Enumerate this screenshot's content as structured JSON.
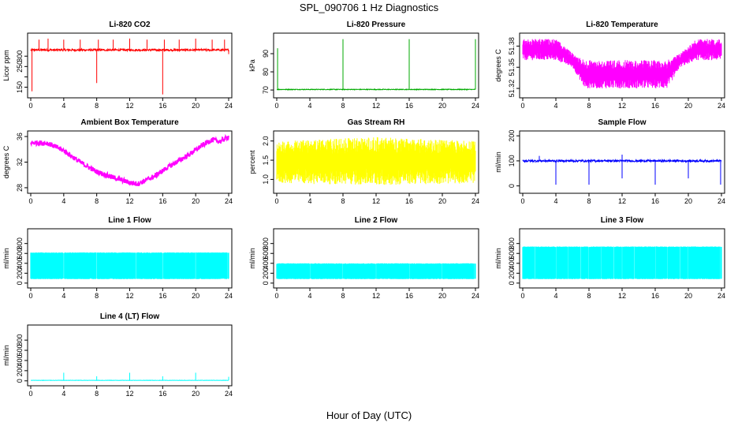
{
  "figure": {
    "title": "SPL_090706  1 Hz Diagnostics",
    "xlabel": "Hour of Day (UTC)"
  },
  "chart_data": [
    {
      "type": "line",
      "title": "Li-820 CO2",
      "ylabel": "Licor ppm",
      "color": "#ff0000",
      "xlim": [
        0,
        24
      ],
      "ylim": [
        110,
        400
      ],
      "xticks": [
        0,
        4,
        8,
        12,
        16,
        20,
        24
      ],
      "yticks": [
        150,
        200,
        250,
        300
      ],
      "yticklabels": [
        "150",
        "",
        "250",
        "300"
      ],
      "baseline": 330,
      "noise": 5,
      "mode": "line",
      "spikes": [
        {
          "x": 0.15,
          "y": 130
        },
        {
          "x": 1.0,
          "y": 380
        },
        {
          "x": 2.1,
          "y": 385
        },
        {
          "x": 4.0,
          "y": 380
        },
        {
          "x": 6.0,
          "y": 380
        },
        {
          "x": 8.0,
          "y": 170
        },
        {
          "x": 8.2,
          "y": 380
        },
        {
          "x": 10.0,
          "y": 380
        },
        {
          "x": 12.0,
          "y": 385
        },
        {
          "x": 14.1,
          "y": 380
        },
        {
          "x": 16.0,
          "y": 115
        },
        {
          "x": 16.2,
          "y": 380
        },
        {
          "x": 18.0,
          "y": 380
        },
        {
          "x": 20.0,
          "y": 385
        },
        {
          "x": 22.0,
          "y": 380
        },
        {
          "x": 23.5,
          "y": 380
        },
        {
          "x": 24.0,
          "y": 310
        }
      ]
    },
    {
      "type": "line",
      "title": "Li-820 Pressure",
      "ylabel": "kPa",
      "color": "#00aa00",
      "xlim": [
        0,
        24
      ],
      "ylim": [
        67,
        100
      ],
      "xticks": [
        0,
        4,
        8,
        12,
        16,
        20,
        24
      ],
      "yticks": [
        70,
        80,
        90
      ],
      "yticklabels": [
        "70",
        "80",
        "90"
      ],
      "baseline": 70.3,
      "noise": 0.2,
      "mode": "line",
      "spikes": [
        {
          "x": 0.1,
          "y": 93
        },
        {
          "x": 8.0,
          "y": 98
        },
        {
          "x": 16.0,
          "y": 98
        },
        {
          "x": 24.0,
          "y": 98
        }
      ]
    },
    {
      "type": "line",
      "title": "Li-820 Temperature",
      "ylabel": "degrees C",
      "color": "#ff00ff",
      "xlim": [
        0,
        24
      ],
      "ylim": [
        51.31,
        51.395
      ],
      "xticks": [
        0,
        4,
        8,
        12,
        16,
        20,
        24
      ],
      "yticks": [
        51.32,
        51.35,
        51.38
      ],
      "yticklabels": [
        "51.32",
        "51.35",
        "51.38"
      ],
      "mode": "band",
      "band_series": [
        {
          "x": 0,
          "lo": 51.36,
          "hi": 51.39
        },
        {
          "x": 4,
          "lo": 51.36,
          "hi": 51.39
        },
        {
          "x": 6,
          "lo": 51.35,
          "hi": 51.37
        },
        {
          "x": 7.5,
          "lo": 51.32,
          "hi": 51.36
        },
        {
          "x": 12,
          "lo": 51.32,
          "hi": 51.36
        },
        {
          "x": 17.5,
          "lo": 51.32,
          "hi": 51.36
        },
        {
          "x": 19,
          "lo": 51.35,
          "hi": 51.37
        },
        {
          "x": 21,
          "lo": 51.36,
          "hi": 51.39
        },
        {
          "x": 24,
          "lo": 51.36,
          "hi": 51.39
        }
      ]
    },
    {
      "type": "line",
      "title": "Ambient Box Temperature",
      "ylabel": "degrees C",
      "color": "#ff00ff",
      "xlim": [
        0,
        24
      ],
      "ylim": [
        27.5,
        36.5
      ],
      "xticks": [
        0,
        4,
        8,
        12,
        16,
        20,
        24
      ],
      "yticks": [
        28,
        32,
        36
      ],
      "yticklabels": [
        "28",
        "32",
        "36"
      ],
      "mode": "curve",
      "noise": 0.4,
      "curve": [
        {
          "x": 0,
          "y": 35.0
        },
        {
          "x": 2,
          "y": 35.0
        },
        {
          "x": 4,
          "y": 33.8
        },
        {
          "x": 6,
          "y": 32.0
        },
        {
          "x": 8,
          "y": 30.5
        },
        {
          "x": 10,
          "y": 29.6
        },
        {
          "x": 12,
          "y": 28.8
        },
        {
          "x": 13,
          "y": 28.6
        },
        {
          "x": 15,
          "y": 29.8
        },
        {
          "x": 17,
          "y": 31.5
        },
        {
          "x": 19,
          "y": 33.0
        },
        {
          "x": 21,
          "y": 34.8
        },
        {
          "x": 22,
          "y": 35.5
        },
        {
          "x": 23,
          "y": 35.2
        },
        {
          "x": 24,
          "y": 36.0
        }
      ]
    },
    {
      "type": "line",
      "title": "Gas Stream RH",
      "ylabel": "percent",
      "color": "#ffff00",
      "xlim": [
        0,
        24
      ],
      "ylim": [
        0.7,
        2.2
      ],
      "xticks": [
        0,
        4,
        8,
        12,
        16,
        20,
        24
      ],
      "yticks": [
        1.0,
        1.5,
        2.0
      ],
      "yticklabels": [
        "1.0",
        "1.5",
        "2.0"
      ],
      "mode": "band",
      "band_series": [
        {
          "x": 0,
          "lo": 0.9,
          "hi": 2.0
        },
        {
          "x": 12,
          "lo": 0.85,
          "hi": 2.1
        },
        {
          "x": 24,
          "lo": 0.9,
          "hi": 2.0
        }
      ]
    },
    {
      "type": "line",
      "title": "Sample Flow",
      "ylabel": "ml/min",
      "color": "#0000ff",
      "xlim": [
        0,
        24
      ],
      "ylim": [
        -20,
        210
      ],
      "xticks": [
        0,
        4,
        8,
        12,
        16,
        20,
        24
      ],
      "yticks": [
        0,
        100,
        200
      ],
      "yticklabels": [
        "0",
        "100",
        "200"
      ],
      "baseline": 100,
      "noise": 4,
      "mode": "line",
      "spikes": [
        {
          "x": 4.0,
          "y": 5
        },
        {
          "x": 8.0,
          "y": 5
        },
        {
          "x": 12.0,
          "y": 30
        },
        {
          "x": 16.0,
          "y": 5
        },
        {
          "x": 20.0,
          "y": 30
        },
        {
          "x": 23.9,
          "y": 5
        },
        {
          "x": 12.0,
          "y": 125
        },
        {
          "x": 2.0,
          "y": 120
        }
      ]
    },
    {
      "type": "line",
      "title": "Line 1 Flow",
      "ylabel": "ml/min",
      "color": "#00ffff",
      "xlim": [
        0,
        24
      ],
      "ylim": [
        -50,
        1050
      ],
      "xticks": [
        0,
        4,
        8,
        12,
        16,
        20,
        24
      ],
      "yticks": [
        0,
        200,
        400,
        600,
        800
      ],
      "yticklabels": [
        "0",
        "200",
        "400",
        "600",
        "800"
      ],
      "mode": "block",
      "lo": 80,
      "hi": 620,
      "gaps": [
        4,
        8,
        12.8,
        16,
        20,
        23.9
      ]
    },
    {
      "type": "line",
      "title": "Line 2 Flow",
      "ylabel": "ml/min",
      "color": "#00ffff",
      "xlim": [
        0,
        24
      ],
      "ylim": [
        -50,
        1050
      ],
      "xticks": [
        0,
        4,
        8,
        12,
        16,
        20,
        24
      ],
      "yticks": [
        0,
        200,
        400,
        600,
        800
      ],
      "yticklabels": [
        "0",
        "200",
        "400",
        "600",
        "800"
      ],
      "mode": "block",
      "lo": 80,
      "hi": 400,
      "gaps": [
        4,
        8,
        12,
        16,
        20,
        23.9
      ]
    },
    {
      "type": "line",
      "title": "Line 3 Flow",
      "ylabel": "ml/min",
      "color": "#00ffff",
      "xlim": [
        0,
        24
      ],
      "ylim": [
        -50,
        1050
      ],
      "xticks": [
        0,
        4,
        8,
        12,
        16,
        20,
        24
      ],
      "yticks": [
        0,
        200,
        400,
        600,
        800
      ],
      "yticklabels": [
        "0",
        "200",
        "400",
        "600",
        "800"
      ],
      "mode": "block",
      "lo": 80,
      "hi": 740,
      "gaps": [
        1.5,
        3,
        4,
        5.5,
        7,
        8,
        9.5,
        11,
        12,
        13.5,
        15,
        16,
        17.5,
        19,
        20,
        23.9
      ]
    },
    {
      "type": "line",
      "title": "Line 4 (LT) Flow",
      "ylabel": "ml/min",
      "color": "#00ffff",
      "xlim": [
        0,
        24
      ],
      "ylim": [
        -50,
        1050
      ],
      "xticks": [
        0,
        4,
        8,
        12,
        16,
        20,
        24
      ],
      "yticks": [
        0,
        200,
        400,
        600,
        800
      ],
      "yticklabels": [
        "0",
        "200",
        "400",
        "600",
        "800"
      ],
      "baseline": 10,
      "noise": 3,
      "mode": "line",
      "spikes": [
        {
          "x": 4.0,
          "y": 160
        },
        {
          "x": 8.0,
          "y": 90
        },
        {
          "x": 12.0,
          "y": 160
        },
        {
          "x": 16.0,
          "y": 90
        },
        {
          "x": 20.0,
          "y": 160
        },
        {
          "x": 24.0,
          "y": 80
        }
      ]
    }
  ]
}
